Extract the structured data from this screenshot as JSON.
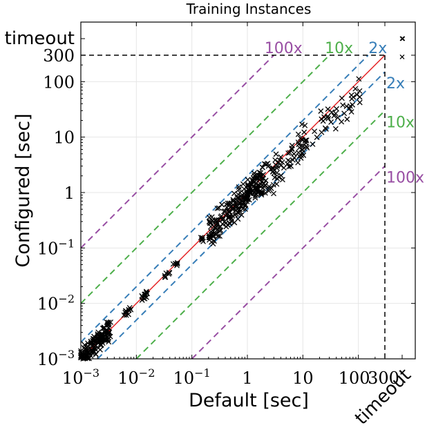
{
  "chart_data": {
    "type": "scatter",
    "title": "Training Instances",
    "xlabel": "Default [sec]",
    "ylabel": "Configured [sec]",
    "scale": "log",
    "xlim": [
      0.001,
      300
    ],
    "ylim": [
      0.001,
      300
    ],
    "x_ticks": [
      {
        "base": "10",
        "exp": "−3",
        "value": 0.001
      },
      {
        "base": "10",
        "exp": "−2",
        "value": 0.01
      },
      {
        "base": "10",
        "exp": "−1",
        "value": 0.1
      },
      {
        "text": "1",
        "value": 1
      },
      {
        "text": "10",
        "value": 10
      },
      {
        "text": "100",
        "value": 100
      },
      {
        "text": "300",
        "value": 300
      }
    ],
    "y_ticks": [
      {
        "base": "10",
        "exp": "−3",
        "value": 0.001
      },
      {
        "base": "10",
        "exp": "−2",
        "value": 0.01
      },
      {
        "base": "10",
        "exp": "−1",
        "value": 0.1
      },
      {
        "text": "1",
        "value": 1
      },
      {
        "text": "10",
        "value": 10
      },
      {
        "text": "100",
        "value": 100
      },
      {
        "text": "300",
        "value": 300
      }
    ],
    "timeout_label": "timeout",
    "grid": true,
    "diagonal_lines": [
      {
        "factor": 1,
        "color": "#e41a1c",
        "style": "solid"
      },
      {
        "factor": 2,
        "label": "2x",
        "color": "#377eb8",
        "style": "dashed"
      },
      {
        "factor": 10,
        "label": "10x",
        "color": "#4daf4a",
        "style": "dashed"
      },
      {
        "factor": 100,
        "label": "100x",
        "color": "#984ea3",
        "style": "dashed"
      }
    ],
    "clusters": [
      {
        "x_range": [
          0.001,
          0.0035
        ],
        "ratio_range": [
          0.6,
          1.6
        ],
        "count": 140
      },
      {
        "x_range": [
          0.006,
          0.008
        ],
        "ratio_range": [
          0.8,
          1.2
        ],
        "count": 10
      },
      {
        "x_range": [
          0.012,
          0.016
        ],
        "ratio_range": [
          0.8,
          1.2
        ],
        "count": 14
      },
      {
        "x_range": [
          0.03,
          0.06
        ],
        "ratio_range": [
          0.8,
          1.2
        ],
        "count": 12
      },
      {
        "x_range": [
          0.14,
          0.16
        ],
        "ratio_range": [
          0.8,
          1.1
        ],
        "count": 6
      },
      {
        "x_range": [
          0.2,
          2.0
        ],
        "ratio_range": [
          0.45,
          1.9
        ],
        "count": 230
      },
      {
        "x_range": [
          2.0,
          12.0
        ],
        "ratio_range": [
          0.3,
          1.9
        ],
        "count": 80
      },
      {
        "x_range": [
          15.0,
          110.0
        ],
        "ratio_range": [
          0.25,
          1.6
        ],
        "count": 40
      }
    ],
    "timeout_points": [
      {
        "x": "timeout",
        "y": "timeout",
        "count": 2
      },
      {
        "x": "timeout",
        "y": 280,
        "count": 1
      }
    ],
    "marker": "x",
    "marker_color": "#000000"
  }
}
